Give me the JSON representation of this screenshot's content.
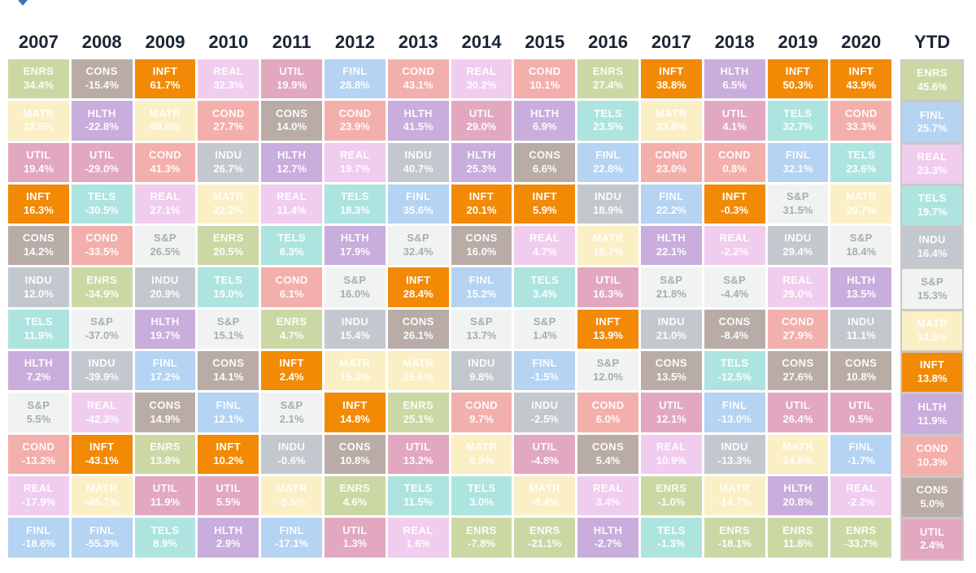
{
  "page": {
    "background": "#ffffff"
  },
  "toolbar": {
    "collapse_marker_color": "#3e6fb4"
  },
  "sector_styles": {
    "ENRS": {
      "bg": "#ccd8a4",
      "text": "rgba(255,255,255,0.92)"
    },
    "CONS": {
      "bg": "#b9aca7",
      "text": "rgba(255,255,255,0.95)"
    },
    "INFT": {
      "bg": "#f28a05",
      "text": "#ffffff"
    },
    "REAL": {
      "bg": "#f0cdee",
      "text": "rgba(255,255,255,0.95)"
    },
    "UTIL": {
      "bg": "#e2a8c0",
      "text": "rgba(255,255,255,0.95)"
    },
    "FINL": {
      "bg": "#b5d3f2",
      "text": "rgba(255,255,255,0.95)"
    },
    "COND": {
      "bg": "#f3afab",
      "text": "rgba(255,255,255,0.95)"
    },
    "MATR": {
      "bg": "#faefc5",
      "text": "rgba(255,255,255,0.92)"
    },
    "HLTH": {
      "bg": "#c9addc",
      "text": "rgba(255,255,255,0.95)"
    },
    "TELS": {
      "bg": "#ade4e0",
      "text": "rgba(255,255,255,0.95)"
    },
    "INDU": {
      "bg": "#c3c8cf",
      "text": "rgba(255,255,255,0.95)"
    },
    "S&P": {
      "bg": "#f1f3f3",
      "text": "#a7adb2"
    }
  },
  "chart_data": {
    "type": "table",
    "description_visible": false,
    "columns": [
      {
        "label": "2007",
        "cells": [
          {
            "sector": "ENRS",
            "value": "34.4%"
          },
          {
            "sector": "MATR",
            "value": "22.5%"
          },
          {
            "sector": "UTIL",
            "value": "19.4%"
          },
          {
            "sector": "INFT",
            "value": "16.3%"
          },
          {
            "sector": "CONS",
            "value": "14.2%"
          },
          {
            "sector": "INDU",
            "value": "12.0%"
          },
          {
            "sector": "TELS",
            "value": "11.9%"
          },
          {
            "sector": "HLTH",
            "value": "7.2%"
          },
          {
            "sector": "S&P",
            "value": "5.5%"
          },
          {
            "sector": "COND",
            "value": "-13.2%"
          },
          {
            "sector": "REAL",
            "value": "-17.9%"
          },
          {
            "sector": "FINL",
            "value": "-18.6%"
          }
        ]
      },
      {
        "label": "2008",
        "cells": [
          {
            "sector": "CONS",
            "value": "-15.4%"
          },
          {
            "sector": "HLTH",
            "value": "-22.8%"
          },
          {
            "sector": "UTIL",
            "value": "-29.0%"
          },
          {
            "sector": "TELS",
            "value": "-30.5%"
          },
          {
            "sector": "COND",
            "value": "-33.5%"
          },
          {
            "sector": "ENRS",
            "value": "-34.9%"
          },
          {
            "sector": "S&P",
            "value": "-37.0%"
          },
          {
            "sector": "INDU",
            "value": "-39.9%"
          },
          {
            "sector": "REAL",
            "value": "-42.3%"
          },
          {
            "sector": "INFT",
            "value": "-43.1%"
          },
          {
            "sector": "MATR",
            "value": "-45.7%"
          },
          {
            "sector": "FINL",
            "value": "-55.3%"
          }
        ]
      },
      {
        "label": "2009",
        "cells": [
          {
            "sector": "INFT",
            "value": "61.7%"
          },
          {
            "sector": "MATR",
            "value": "48.6%"
          },
          {
            "sector": "COND",
            "value": "41.3%"
          },
          {
            "sector": "REAL",
            "value": "27.1%"
          },
          {
            "sector": "S&P",
            "value": "26.5%"
          },
          {
            "sector": "INDU",
            "value": "20.9%"
          },
          {
            "sector": "HLTH",
            "value": "19.7%"
          },
          {
            "sector": "FINL",
            "value": "17.2%"
          },
          {
            "sector": "CONS",
            "value": "14.9%"
          },
          {
            "sector": "ENRS",
            "value": "13.8%"
          },
          {
            "sector": "UTIL",
            "value": "11.9%"
          },
          {
            "sector": "TELS",
            "value": "8.9%"
          }
        ]
      },
      {
        "label": "2010",
        "cells": [
          {
            "sector": "REAL",
            "value": "32.3%"
          },
          {
            "sector": "COND",
            "value": "27.7%"
          },
          {
            "sector": "INDU",
            "value": "26.7%"
          },
          {
            "sector": "MATR",
            "value": "22.2%"
          },
          {
            "sector": "ENRS",
            "value": "20.5%"
          },
          {
            "sector": "TELS",
            "value": "19.0%"
          },
          {
            "sector": "S&P",
            "value": "15.1%"
          },
          {
            "sector": "CONS",
            "value": "14.1%"
          },
          {
            "sector": "FINL",
            "value": "12.1%"
          },
          {
            "sector": "INFT",
            "value": "10.2%"
          },
          {
            "sector": "UTIL",
            "value": "5.5%"
          },
          {
            "sector": "HLTH",
            "value": "2.9%"
          }
        ]
      },
      {
        "label": "2011",
        "cells": [
          {
            "sector": "UTIL",
            "value": "19.9%"
          },
          {
            "sector": "CONS",
            "value": "14.0%"
          },
          {
            "sector": "HLTH",
            "value": "12.7%"
          },
          {
            "sector": "REAL",
            "value": "11.4%"
          },
          {
            "sector": "TELS",
            "value": "6.3%"
          },
          {
            "sector": "COND",
            "value": "6.1%"
          },
          {
            "sector": "ENRS",
            "value": "4.7%"
          },
          {
            "sector": "INFT",
            "value": "2.4%"
          },
          {
            "sector": "S&P",
            "value": "2.1%"
          },
          {
            "sector": "INDU",
            "value": "-0.6%"
          },
          {
            "sector": "MATR",
            "value": "-9.6%"
          },
          {
            "sector": "FINL",
            "value": "-17.1%"
          }
        ]
      },
      {
        "label": "2012",
        "cells": [
          {
            "sector": "FINL",
            "value": "28.8%"
          },
          {
            "sector": "COND",
            "value": "23.9%"
          },
          {
            "sector": "REAL",
            "value": "19.7%"
          },
          {
            "sector": "TELS",
            "value": "18.3%"
          },
          {
            "sector": "HLTH",
            "value": "17.9%"
          },
          {
            "sector": "S&P",
            "value": "16.0%"
          },
          {
            "sector": "INDU",
            "value": "15.4%"
          },
          {
            "sector": "MATR",
            "value": "15.0%"
          },
          {
            "sector": "INFT",
            "value": "14.8%"
          },
          {
            "sector": "CONS",
            "value": "10.8%"
          },
          {
            "sector": "ENRS",
            "value": "4.6%"
          },
          {
            "sector": "UTIL",
            "value": "1.3%"
          }
        ]
      },
      {
        "label": "2013",
        "cells": [
          {
            "sector": "COND",
            "value": "43.1%"
          },
          {
            "sector": "HLTH",
            "value": "41.5%"
          },
          {
            "sector": "INDU",
            "value": "40.7%"
          },
          {
            "sector": "FINL",
            "value": "35.6%"
          },
          {
            "sector": "S&P",
            "value": "32.4%"
          },
          {
            "sector": "INFT",
            "value": "28.4%"
          },
          {
            "sector": "CONS",
            "value": "26.1%"
          },
          {
            "sector": "MATR",
            "value": "25.6%"
          },
          {
            "sector": "ENRS",
            "value": "25.1%"
          },
          {
            "sector": "UTIL",
            "value": "13.2%"
          },
          {
            "sector": "TELS",
            "value": "11.5%"
          },
          {
            "sector": "REAL",
            "value": "1.6%"
          }
        ]
      },
      {
        "label": "2014",
        "cells": [
          {
            "sector": "REAL",
            "value": "30.2%"
          },
          {
            "sector": "UTIL",
            "value": "29.0%"
          },
          {
            "sector": "HLTH",
            "value": "25.3%"
          },
          {
            "sector": "INFT",
            "value": "20.1%"
          },
          {
            "sector": "CONS",
            "value": "16.0%"
          },
          {
            "sector": "FINL",
            "value": "15.2%"
          },
          {
            "sector": "S&P",
            "value": "13.7%"
          },
          {
            "sector": "INDU",
            "value": "9.8%"
          },
          {
            "sector": "COND",
            "value": "9.7%"
          },
          {
            "sector": "MATR",
            "value": "6.9%"
          },
          {
            "sector": "TELS",
            "value": "3.0%"
          },
          {
            "sector": "ENRS",
            "value": "-7.8%"
          }
        ]
      },
      {
        "label": "2015",
        "cells": [
          {
            "sector": "COND",
            "value": "10.1%"
          },
          {
            "sector": "HLTH",
            "value": "6.9%"
          },
          {
            "sector": "CONS",
            "value": "6.6%"
          },
          {
            "sector": "INFT",
            "value": "5.9%"
          },
          {
            "sector": "REAL",
            "value": "4.7%"
          },
          {
            "sector": "TELS",
            "value": "3.4%"
          },
          {
            "sector": "S&P",
            "value": "1.4%"
          },
          {
            "sector": "FINL",
            "value": "-1.5%"
          },
          {
            "sector": "INDU",
            "value": "-2.5%"
          },
          {
            "sector": "UTIL",
            "value": "-4.8%"
          },
          {
            "sector": "MATR",
            "value": "-8.4%"
          },
          {
            "sector": "ENRS",
            "value": "-21.1%"
          }
        ]
      },
      {
        "label": "2016",
        "cells": [
          {
            "sector": "ENRS",
            "value": "27.4%"
          },
          {
            "sector": "TELS",
            "value": "23.5%"
          },
          {
            "sector": "FINL",
            "value": "22.8%"
          },
          {
            "sector": "INDU",
            "value": "18.9%"
          },
          {
            "sector": "MATR",
            "value": "16.7%"
          },
          {
            "sector": "UTIL",
            "value": "16.3%"
          },
          {
            "sector": "INFT",
            "value": "13.9%"
          },
          {
            "sector": "S&P",
            "value": "12.0%"
          },
          {
            "sector": "COND",
            "value": "6.0%"
          },
          {
            "sector": "CONS",
            "value": "5.4%"
          },
          {
            "sector": "REAL",
            "value": "3.4%"
          },
          {
            "sector": "HLTH",
            "value": "-2.7%"
          }
        ]
      },
      {
        "label": "2017",
        "cells": [
          {
            "sector": "INFT",
            "value": "38.8%"
          },
          {
            "sector": "MATR",
            "value": "23.8%"
          },
          {
            "sector": "COND",
            "value": "23.0%"
          },
          {
            "sector": "FINL",
            "value": "22.2%"
          },
          {
            "sector": "HLTH",
            "value": "22.1%"
          },
          {
            "sector": "S&P",
            "value": "21.8%"
          },
          {
            "sector": "INDU",
            "value": "21.0%"
          },
          {
            "sector": "CONS",
            "value": "13.5%"
          },
          {
            "sector": "UTIL",
            "value": "12.1%"
          },
          {
            "sector": "REAL",
            "value": "10.9%"
          },
          {
            "sector": "ENRS",
            "value": "-1.0%"
          },
          {
            "sector": "TELS",
            "value": "-1.3%"
          }
        ]
      },
      {
        "label": "2018",
        "cells": [
          {
            "sector": "HLTH",
            "value": "6.5%"
          },
          {
            "sector": "UTIL",
            "value": "4.1%"
          },
          {
            "sector": "COND",
            "value": "0.8%"
          },
          {
            "sector": "INFT",
            "value": "-0.3%"
          },
          {
            "sector": "REAL",
            "value": "-2.2%"
          },
          {
            "sector": "S&P",
            "value": "-4.4%"
          },
          {
            "sector": "CONS",
            "value": "-8.4%"
          },
          {
            "sector": "TELS",
            "value": "-12.5%"
          },
          {
            "sector": "FINL",
            "value": "-13.0%"
          },
          {
            "sector": "INDU",
            "value": "-13.3%"
          },
          {
            "sector": "MATR",
            "value": "-14.7%"
          },
          {
            "sector": "ENRS",
            "value": "-18.1%"
          }
        ]
      },
      {
        "label": "2019",
        "cells": [
          {
            "sector": "INFT",
            "value": "50.3%"
          },
          {
            "sector": "TELS",
            "value": "32.7%"
          },
          {
            "sector": "FINL",
            "value": "32.1%"
          },
          {
            "sector": "S&P",
            "value": "31.5%"
          },
          {
            "sector": "INDU",
            "value": "29.4%"
          },
          {
            "sector": "REAL",
            "value": "29.0%"
          },
          {
            "sector": "COND",
            "value": "27.9%"
          },
          {
            "sector": "CONS",
            "value": "27.6%"
          },
          {
            "sector": "UTIL",
            "value": "26.4%"
          },
          {
            "sector": "MATR",
            "value": "24.6%"
          },
          {
            "sector": "HLTH",
            "value": "20.8%"
          },
          {
            "sector": "ENRS",
            "value": "11.8%"
          }
        ]
      },
      {
        "label": "2020",
        "cells": [
          {
            "sector": "INFT",
            "value": "43.9%"
          },
          {
            "sector": "COND",
            "value": "33.3%"
          },
          {
            "sector": "TELS",
            "value": "23.6%"
          },
          {
            "sector": "MATR",
            "value": "20.7%"
          },
          {
            "sector": "S&P",
            "value": "18.4%"
          },
          {
            "sector": "HLTH",
            "value": "13.5%"
          },
          {
            "sector": "INDU",
            "value": "11.1%"
          },
          {
            "sector": "CONS",
            "value": "10.8%"
          },
          {
            "sector": "UTIL",
            "value": "0.5%"
          },
          {
            "sector": "FINL",
            "value": "-1.7%"
          },
          {
            "sector": "REAL",
            "value": "-2.2%"
          },
          {
            "sector": "ENRS",
            "value": "-33.7%"
          }
        ]
      },
      {
        "label": "YTD",
        "is_ytd": true,
        "cells": [
          {
            "sector": "ENRS",
            "value": "45.6%"
          },
          {
            "sector": "FINL",
            "value": "25.7%"
          },
          {
            "sector": "REAL",
            "value": "23.3%"
          },
          {
            "sector": "TELS",
            "value": "19.7%"
          },
          {
            "sector": "INDU",
            "value": "16.4%"
          },
          {
            "sector": "S&P",
            "value": "15.3%"
          },
          {
            "sector": "MATR",
            "value": "14.5%"
          },
          {
            "sector": "INFT",
            "value": "13.8%"
          },
          {
            "sector": "HLTH",
            "value": "11.9%"
          },
          {
            "sector": "COND",
            "value": "10.3%"
          },
          {
            "sector": "CONS",
            "value": "5.0%"
          },
          {
            "sector": "UTIL",
            "value": "2.4%"
          }
        ]
      }
    ]
  }
}
